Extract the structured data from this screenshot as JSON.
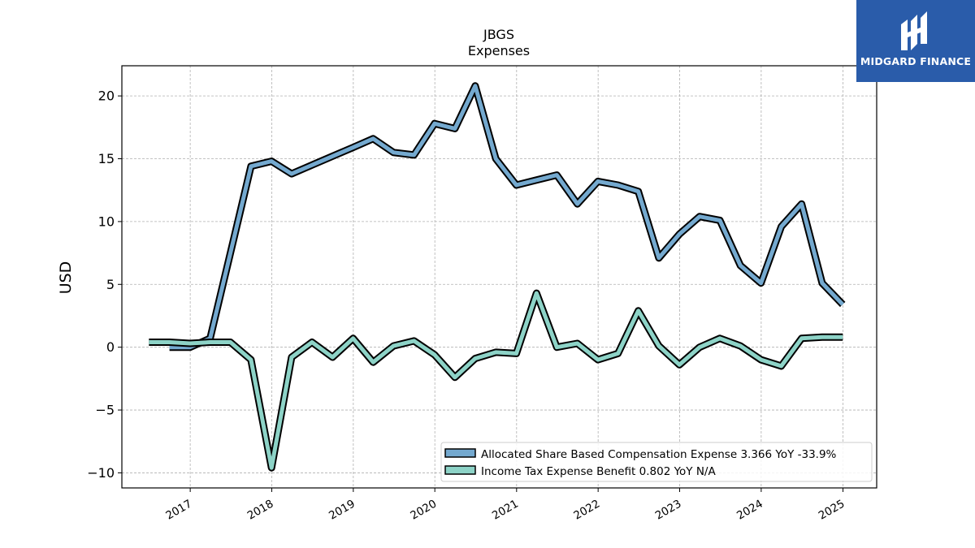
{
  "brand": {
    "name": "MIDGARD FINANCE",
    "color": "#2a5caa"
  },
  "chart_data": {
    "type": "line",
    "title": "JBGS",
    "subtitle": "Expenses",
    "ylabel": "USD",
    "xlabel": "",
    "xlim": [
      "2016-03-01",
      "2025-06-01"
    ],
    "ylim": [
      -11.2,
      22.4
    ],
    "yticks": [
      -10,
      -5,
      0,
      5,
      10,
      15,
      20
    ],
    "xticks": [
      "2017",
      "2018",
      "2019",
      "2020",
      "2021",
      "2022",
      "2023",
      "2024",
      "2025"
    ],
    "grid": true,
    "legend_position": "lower-right",
    "series": [
      {
        "name": "Allocated Share Based Compensation Expense  3.366 YoY -33.9%",
        "color": "#74a9cf",
        "points": [
          [
            "2016-09-30",
            0.0
          ],
          [
            "2016-12-31",
            0.0
          ],
          [
            "2017-03-31",
            0.7
          ],
          [
            "2017-06-30",
            7.5
          ],
          [
            "2017-09-30",
            14.4
          ],
          [
            "2017-12-31",
            14.8
          ],
          [
            "2018-03-31",
            13.8
          ],
          [
            "2018-06-30",
            14.5
          ],
          [
            "2018-09-30",
            15.2
          ],
          [
            "2018-12-31",
            15.9
          ],
          [
            "2019-03-31",
            16.6
          ],
          [
            "2019-06-30",
            15.5
          ],
          [
            "2019-09-30",
            15.3
          ],
          [
            "2019-12-31",
            17.8
          ],
          [
            "2020-03-31",
            17.4
          ],
          [
            "2020-06-30",
            20.8
          ],
          [
            "2020-09-30",
            15.0
          ],
          [
            "2020-12-31",
            12.9
          ],
          [
            "2021-03-31",
            13.3
          ],
          [
            "2021-06-30",
            13.7
          ],
          [
            "2021-09-30",
            11.4
          ],
          [
            "2021-12-31",
            13.2
          ],
          [
            "2022-03-31",
            12.9
          ],
          [
            "2022-06-30",
            12.4
          ],
          [
            "2022-09-30",
            7.1
          ],
          [
            "2022-12-31",
            9.0
          ],
          [
            "2023-03-31",
            10.4
          ],
          [
            "2023-06-30",
            10.1
          ],
          [
            "2023-09-30",
            6.5
          ],
          [
            "2023-12-31",
            5.1
          ],
          [
            "2024-03-31",
            9.6
          ],
          [
            "2024-06-30",
            11.4
          ],
          [
            "2024-09-30",
            5.1
          ],
          [
            "2024-12-31",
            3.4
          ]
        ]
      },
      {
        "name": "Income Tax Expense Benefit  0.802 YoY N/A",
        "color": "#8dd3c7",
        "points": [
          [
            "2016-06-30",
            0.4
          ],
          [
            "2016-09-30",
            0.4
          ],
          [
            "2016-12-31",
            0.3
          ],
          [
            "2017-03-31",
            0.4
          ],
          [
            "2017-06-30",
            0.4
          ],
          [
            "2017-09-30",
            -1.0
          ],
          [
            "2017-12-31",
            -9.6
          ],
          [
            "2018-03-31",
            -0.8
          ],
          [
            "2018-06-30",
            0.4
          ],
          [
            "2018-09-30",
            -0.8
          ],
          [
            "2018-12-31",
            0.7
          ],
          [
            "2019-03-31",
            -1.2
          ],
          [
            "2019-06-30",
            0.1
          ],
          [
            "2019-09-30",
            0.5
          ],
          [
            "2019-12-31",
            -0.6
          ],
          [
            "2020-03-31",
            -2.4
          ],
          [
            "2020-06-30",
            -0.9
          ],
          [
            "2020-09-30",
            -0.4
          ],
          [
            "2020-12-31",
            -0.5
          ],
          [
            "2021-03-31",
            4.3
          ],
          [
            "2021-06-30",
            0.0
          ],
          [
            "2021-09-30",
            0.3
          ],
          [
            "2021-12-31",
            -1.0
          ],
          [
            "2022-03-31",
            -0.5
          ],
          [
            "2022-06-30",
            2.9
          ],
          [
            "2022-09-30",
            0.1
          ],
          [
            "2022-12-31",
            -1.4
          ],
          [
            "2023-03-31",
            0.0
          ],
          [
            "2023-06-30",
            0.7
          ],
          [
            "2023-09-30",
            0.1
          ],
          [
            "2023-12-31",
            -1.0
          ],
          [
            "2024-03-31",
            -1.5
          ],
          [
            "2024-06-30",
            0.7
          ],
          [
            "2024-09-30",
            0.8
          ],
          [
            "2024-12-31",
            0.8
          ]
        ]
      }
    ]
  }
}
